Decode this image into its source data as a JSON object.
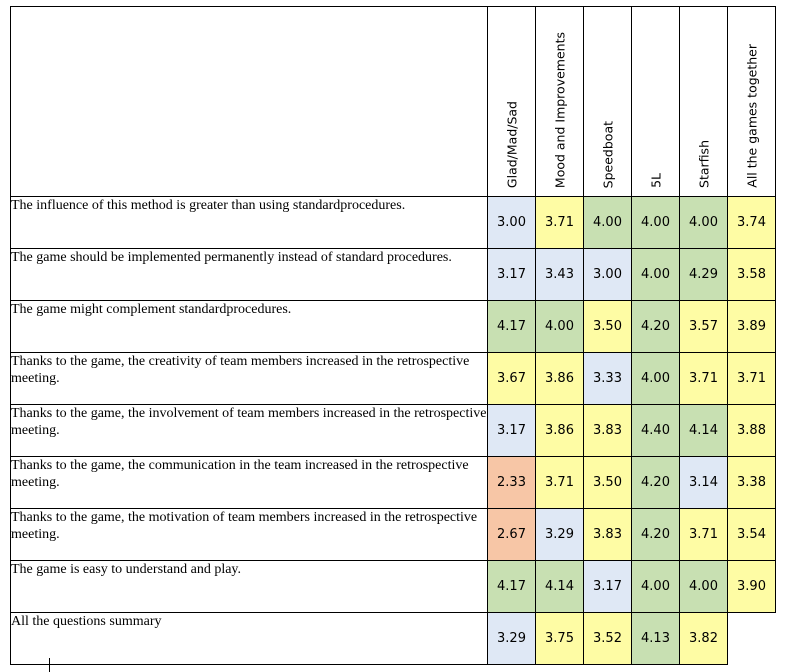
{
  "table": {
    "columns": [
      "Glad/Mad/Sad",
      "Mood and Improvements",
      "Speedboat",
      "5L",
      "Starfish",
      "All the games together"
    ],
    "colors": {
      "blue": "#dfe8f5",
      "yellow": "#fefca4",
      "green": "#c8e0b2",
      "orange": "#f7c6a6"
    },
    "rows": [
      {
        "question": "The influence of this method is greater than using standardprocedures.",
        "values": [
          "3.00",
          "3.71",
          "4.00",
          "4.00",
          "4.00",
          "3.74"
        ],
        "shades": [
          "blue",
          "yellow",
          "green",
          "green",
          "green",
          "yellow"
        ]
      },
      {
        "question": "The game should be implemented permanently instead of standard procedures.",
        "values": [
          "3.17",
          "3.43",
          "3.00",
          "4.00",
          "4.29",
          "3.58"
        ],
        "shades": [
          "blue",
          "blue",
          "blue",
          "green",
          "green",
          "yellow"
        ]
      },
      {
        "question": "The game might complement standardprocedures.",
        "values": [
          "4.17",
          "4.00",
          "3.50",
          "4.20",
          "3.57",
          "3.89"
        ],
        "shades": [
          "green",
          "green",
          "yellow",
          "green",
          "yellow",
          "yellow"
        ]
      },
      {
        "question": "Thanks to the game, the creativity of team members increased in the retrospective meeting.",
        "values": [
          "3.67",
          "3.86",
          "3.33",
          "4.00",
          "3.71",
          "3.71"
        ],
        "shades": [
          "yellow",
          "yellow",
          "blue",
          "green",
          "yellow",
          "yellow"
        ]
      },
      {
        "question": "Thanks to the game, the involvement of team members increased in the retrospective meeting.",
        "values": [
          "3.17",
          "3.86",
          "3.83",
          "4.40",
          "4.14",
          "3.88"
        ],
        "shades": [
          "blue",
          "yellow",
          "yellow",
          "green",
          "green",
          "yellow"
        ]
      },
      {
        "question": "Thanks to the game, the communication in the team increased in the retrospective meeting.",
        "values": [
          "2.33",
          "3.71",
          "3.50",
          "4.20",
          "3.14",
          "3.38"
        ],
        "shades": [
          "orange",
          "yellow",
          "yellow",
          "green",
          "blue",
          "yellow"
        ]
      },
      {
        "question": "Thanks to the game, the motivation of team members increased in the retrospective meeting.",
        "values": [
          "2.67",
          "3.29",
          "3.83",
          "4.20",
          "3.71",
          "3.54"
        ],
        "shades": [
          "orange",
          "blue",
          "yellow",
          "green",
          "yellow",
          "yellow"
        ]
      },
      {
        "question": "The game is easy to understand and play.",
        "values": [
          "4.17",
          "4.14",
          "3.17",
          "4.00",
          "4.00",
          "3.90"
        ],
        "shades": [
          "green",
          "green",
          "blue",
          "green",
          "green",
          "yellow"
        ]
      },
      {
        "question": "All the questions summary",
        "values": [
          "3.29",
          "3.75",
          "3.52",
          "4.13",
          "3.82",
          ""
        ],
        "shades": [
          "blue",
          "yellow",
          "yellow",
          "green",
          "yellow",
          "none"
        ]
      }
    ]
  }
}
